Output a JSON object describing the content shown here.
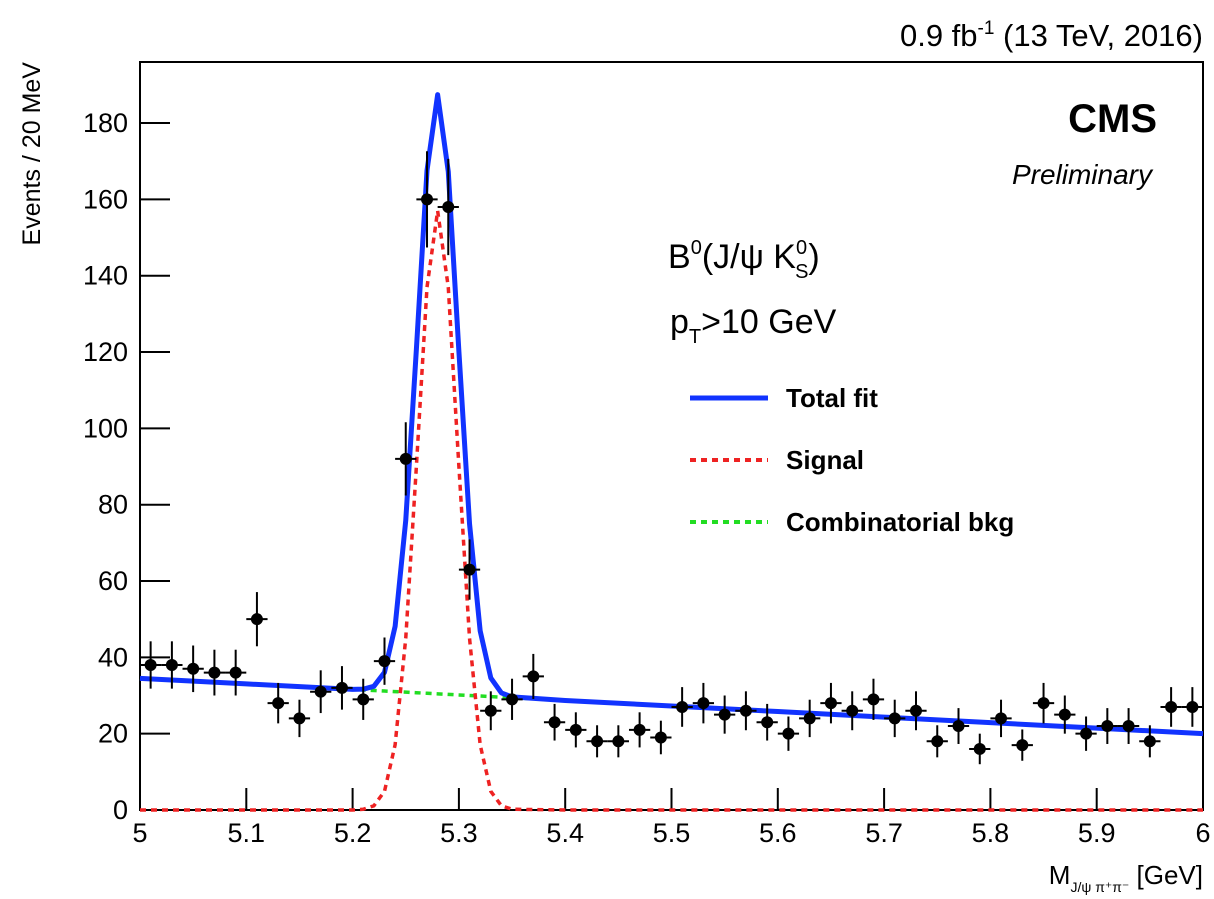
{
  "chart_data": {
    "type": "scatter",
    "annotations": {
      "lumi": [
        "0.9 fb",
        "-1",
        " (13 TeV, 2016)"
      ],
      "experiment": "CMS",
      "status": "Preliminary",
      "process": [
        "B",
        "0",
        "(J/ψ K",
        "0",
        "S",
        ")"
      ],
      "cut": [
        "p",
        "T",
        ">10 GeV"
      ]
    },
    "xlabel": [
      "M",
      "J/ψ π⁺π⁻",
      " [GeV]"
    ],
    "ylabel": "Events / 20 MeV",
    "xlim": [
      5,
      6
    ],
    "ylim": [
      0,
      196
    ],
    "xticks": [
      5,
      5.1,
      5.2,
      5.3,
      5.4,
      5.5,
      5.6,
      5.7,
      5.8,
      5.9,
      6
    ],
    "yticks": [
      0,
      20,
      40,
      60,
      80,
      100,
      120,
      140,
      160,
      180
    ],
    "bin_width": 0.02,
    "x": [
      5.01,
      5.03,
      5.05,
      5.07,
      5.09,
      5.11,
      5.13,
      5.15,
      5.17,
      5.19,
      5.21,
      5.23,
      5.25,
      5.27,
      5.29,
      5.31,
      5.33,
      5.35,
      5.37,
      5.39,
      5.41,
      5.43,
      5.45,
      5.47,
      5.49,
      5.51,
      5.53,
      5.55,
      5.57,
      5.59,
      5.61,
      5.63,
      5.65,
      5.67,
      5.69,
      5.71,
      5.73,
      5.75,
      5.77,
      5.79,
      5.81,
      5.83,
      5.85,
      5.87,
      5.89,
      5.91,
      5.93,
      5.95,
      5.97,
      5.99
    ],
    "values": [
      38,
      38,
      37,
      36,
      36,
      50,
      28,
      24,
      31,
      32,
      29,
      39,
      92,
      160,
      158,
      63,
      26,
      29,
      35,
      23,
      21,
      18,
      18,
      21,
      19,
      27,
      28,
      25,
      26,
      23,
      20,
      24,
      28,
      26,
      29,
      24,
      26,
      18,
      22,
      16,
      24,
      17,
      28,
      25,
      20,
      22,
      22,
      18,
      27,
      27
    ],
    "errors": [
      6.2,
      6.2,
      6.1,
      6,
      6,
      7.1,
      5.3,
      4.9,
      5.6,
      5.7,
      5.4,
      6.2,
      9.6,
      12.6,
      12.6,
      7.9,
      5.1,
      5.4,
      5.9,
      4.8,
      4.6,
      4.2,
      4.2,
      4.6,
      4.4,
      5.2,
      5.3,
      5,
      5.1,
      4.8,
      4.5,
      4.9,
      5.3,
      5.1,
      5.4,
      4.9,
      5.1,
      4.2,
      4.7,
      4,
      4.9,
      4.1,
      5.3,
      5,
      4.5,
      4.7,
      4.7,
      4.2,
      5.2,
      5.2
    ],
    "marker_color": "#000000",
    "curves": [
      {
        "name": "Combinatorial bkg",
        "color": "#22dd22",
        "dashed": true,
        "x": [
          5.0,
          5.1,
          5.2,
          5.21,
          5.22,
          5.23,
          5.24,
          5.25,
          5.26,
          5.27,
          5.28,
          5.29,
          5.3,
          5.31,
          5.32,
          5.33,
          5.34,
          5.35,
          5.4,
          5.5,
          5.6,
          5.7,
          5.8,
          5.9,
          6.0
        ],
        "values": [
          34.5,
          33.05,
          31.6,
          31.46,
          31.31,
          31.17,
          31.02,
          30.88,
          30.73,
          30.59,
          30.44,
          30.3,
          30.15,
          30.01,
          29.86,
          29.72,
          29.57,
          29.43,
          28.7,
          27.25,
          25.8,
          24.35,
          22.9,
          21.45,
          20.0
        ]
      },
      {
        "name": "Signal",
        "color": "#ee2222",
        "dashed": true,
        "x": [
          5.0,
          5.1,
          5.2,
          5.21,
          5.22,
          5.23,
          5.24,
          5.25,
          5.26,
          5.27,
          5.28,
          5.29,
          5.3,
          5.31,
          5.32,
          5.33,
          5.34,
          5.35,
          5.4,
          5.5,
          5.6,
          5.7,
          5.8,
          5.9,
          6.0
        ],
        "values": [
          0,
          0,
          0,
          0.2,
          1.1,
          4.9,
          17.1,
          45,
          90,
          137,
          157,
          137,
          90,
          45,
          17.1,
          4.9,
          1.1,
          0.2,
          0,
          0,
          0,
          0,
          0,
          0,
          0
        ]
      },
      {
        "name": "Total fit",
        "color": "#1133ff",
        "dashed": false,
        "x": [
          5.0,
          5.1,
          5.2,
          5.21,
          5.22,
          5.23,
          5.24,
          5.25,
          5.26,
          5.27,
          5.28,
          5.29,
          5.3,
          5.31,
          5.32,
          5.33,
          5.34,
          5.35,
          5.4,
          5.5,
          5.6,
          5.7,
          5.8,
          5.9,
          6.0
        ],
        "values": [
          34.5,
          33.05,
          31.6,
          31.66,
          32.41,
          36.07,
          48.12,
          75.88,
          120.73,
          167.59,
          187.44,
          167.3,
          120.15,
          75.01,
          46.96,
          34.62,
          30.67,
          29.63,
          28.7,
          27.25,
          25.8,
          24.35,
          22.9,
          21.45,
          20.0
        ]
      }
    ],
    "legend_order": [
      2,
      1,
      0
    ]
  }
}
